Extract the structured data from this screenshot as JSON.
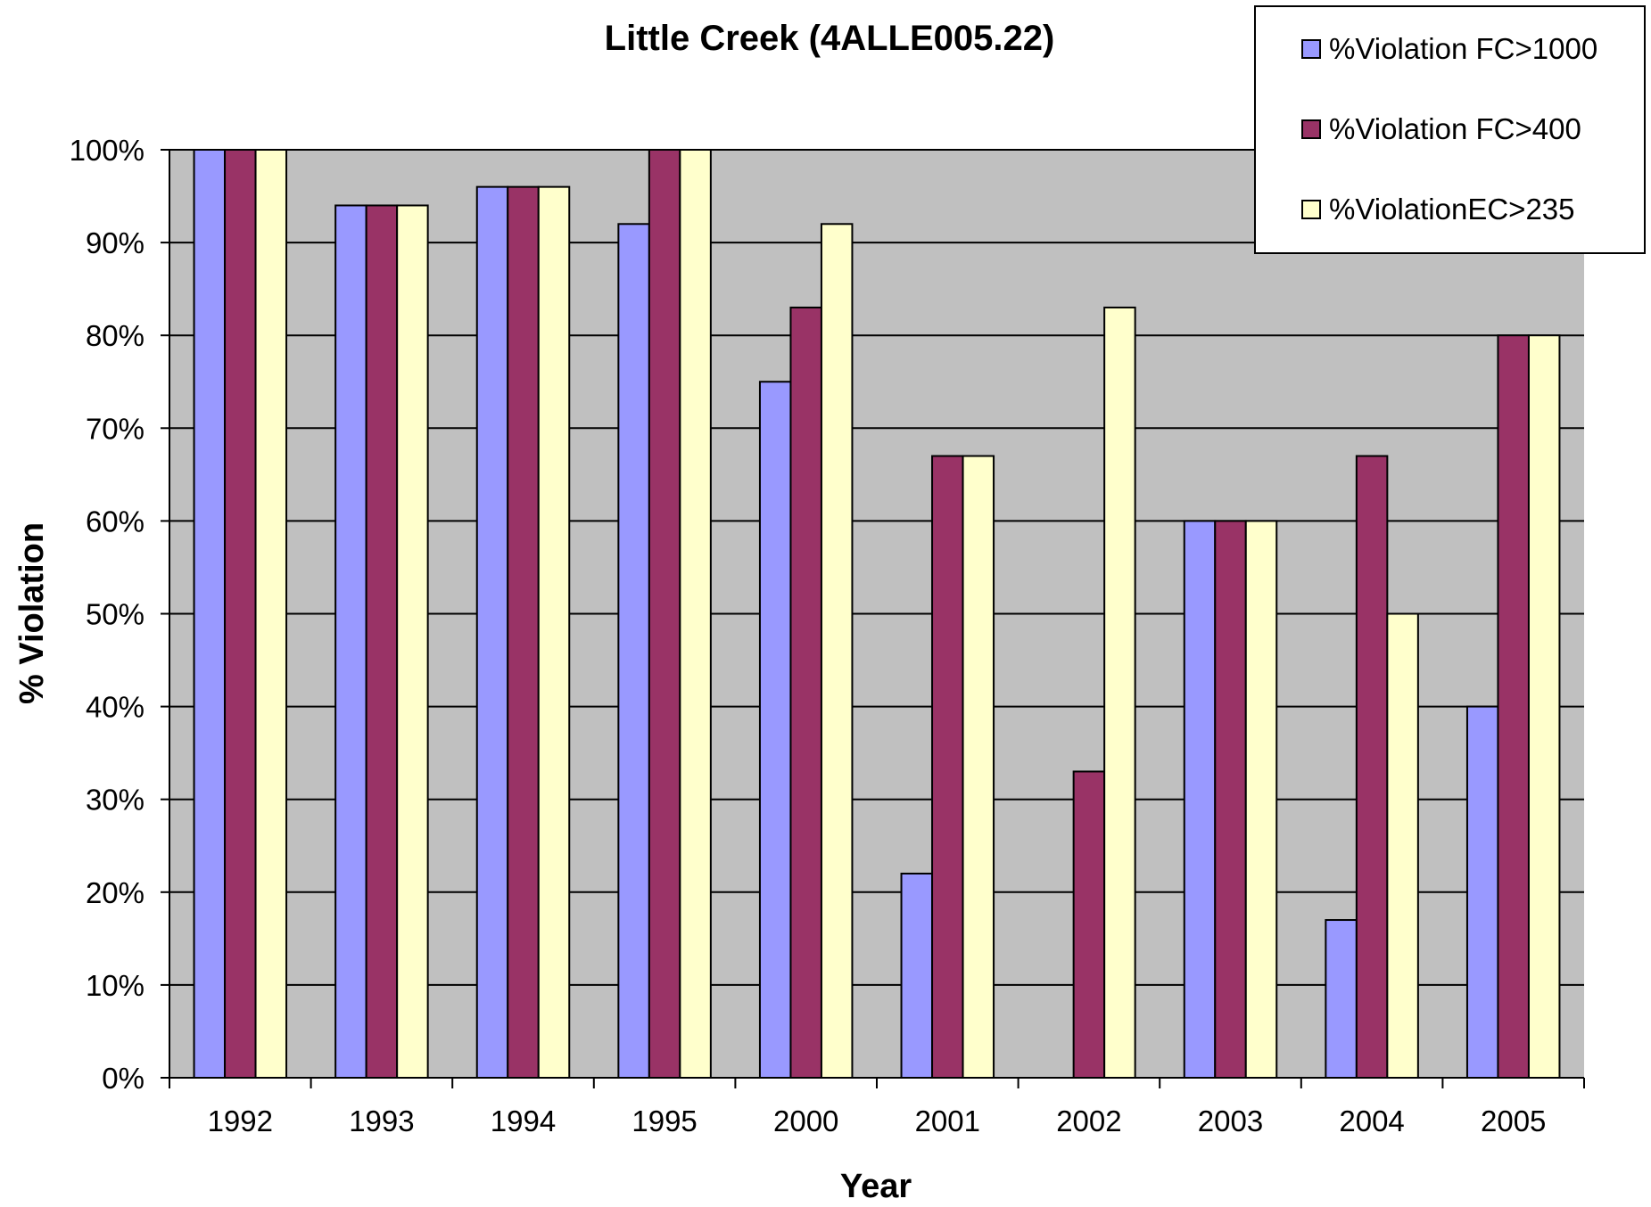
{
  "chart_data": {
    "type": "bar",
    "title": "Little Creek (4ALLE005.22)",
    "xlabel": "Year",
    "ylabel": "% Violation",
    "categories": [
      "1992",
      "1993",
      "1994",
      "1995",
      "2000",
      "2001",
      "2002",
      "2003",
      "2004",
      "2005"
    ],
    "series": [
      {
        "name": "%Violation FC>1000",
        "color": "#9999ff",
        "values": [
          100,
          94,
          96,
          92,
          75,
          22,
          0,
          60,
          17,
          40
        ]
      },
      {
        "name": "%Violation FC>400",
        "color": "#993366",
        "values": [
          100,
          94,
          96,
          100,
          83,
          67,
          33,
          60,
          67,
          80
        ]
      },
      {
        "name": "%ViolationEC>235",
        "color": "#ffffcc",
        "values": [
          100,
          94,
          96,
          100,
          92,
          67,
          83,
          60,
          50,
          80
        ]
      }
    ],
    "ylim": [
      0,
      100
    ],
    "yticks": [
      "0%",
      "10%",
      "20%",
      "30%",
      "40%",
      "50%",
      "60%",
      "70%",
      "80%",
      "90%",
      "100%"
    ],
    "grid": true,
    "plot_background": "#c0c0c0",
    "legend_position": "top-right"
  }
}
